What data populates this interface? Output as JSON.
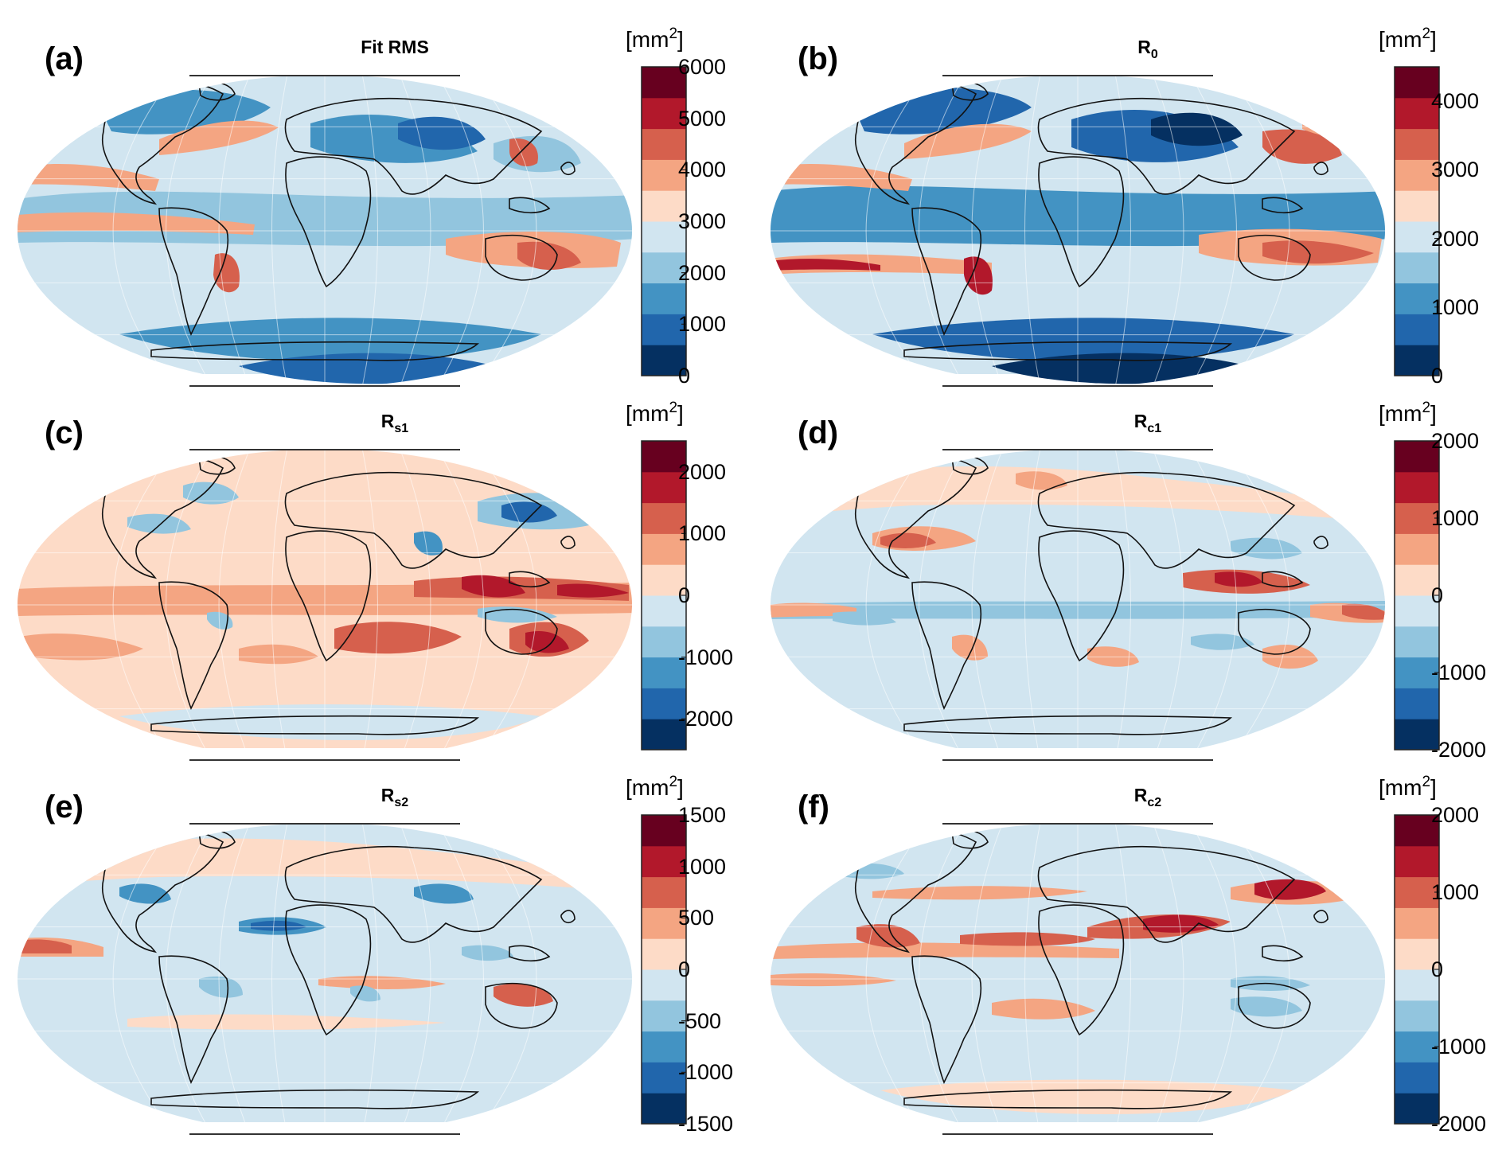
{
  "figure": {
    "colors": [
      "#053061",
      "#2166ac",
      "#4393c3",
      "#92c5de",
      "#d1e5f0",
      "#fddbc7",
      "#f4a582",
      "#d6604d",
      "#b2182b",
      "#67001f"
    ],
    "panels": [
      {
        "label": "(a)",
        "title_main": "Fit RMS",
        "title_sub": "",
        "unit_base": "[mm",
        "unit_sup": "2",
        "unit_close": "]",
        "ticks": [
          "6000",
          "5000",
          "4000",
          "3000",
          "2000",
          "1000",
          "0"
        ],
        "range": [
          0,
          6000
        ]
      },
      {
        "label": "(b)",
        "title_main": "R",
        "title_sub": "0",
        "unit_base": "[mm",
        "unit_sup": "2",
        "unit_close": "]",
        "ticks": [
          "4000",
          "3000",
          "2000",
          "1000",
          "0"
        ],
        "range": [
          0,
          4500
        ]
      },
      {
        "label": "(c)",
        "title_main": "R",
        "title_sub": "s1",
        "unit_base": "[mm",
        "unit_sup": "2",
        "unit_close": "]",
        "ticks": [
          "2000",
          "1000",
          "0",
          "-1000",
          "-2000"
        ],
        "range": [
          -2500,
          2500
        ]
      },
      {
        "label": "(d)",
        "title_main": "R",
        "title_sub": "c1",
        "unit_base": "[mm",
        "unit_sup": "2",
        "unit_close": "]",
        "ticks": [
          "2000",
          "1000",
          "0",
          "-1000",
          "-2000"
        ],
        "range": [
          -2000,
          2000
        ]
      },
      {
        "label": "(e)",
        "title_main": "R",
        "title_sub": "s2",
        "unit_base": "[mm",
        "unit_sup": "2",
        "unit_close": "]",
        "ticks": [
          "1500",
          "1000",
          "500",
          "0",
          "-500",
          "-1000",
          "-1500"
        ],
        "range": [
          -1500,
          1500
        ]
      },
      {
        "label": "(f)",
        "title_main": "R",
        "title_sub": "c2",
        "unit_base": "[mm",
        "unit_sup": "2",
        "unit_close": "]",
        "ticks": [
          "2000",
          "1000",
          "0",
          "-1000",
          "-2000"
        ],
        "range": [
          -2000,
          2000
        ]
      }
    ]
  }
}
